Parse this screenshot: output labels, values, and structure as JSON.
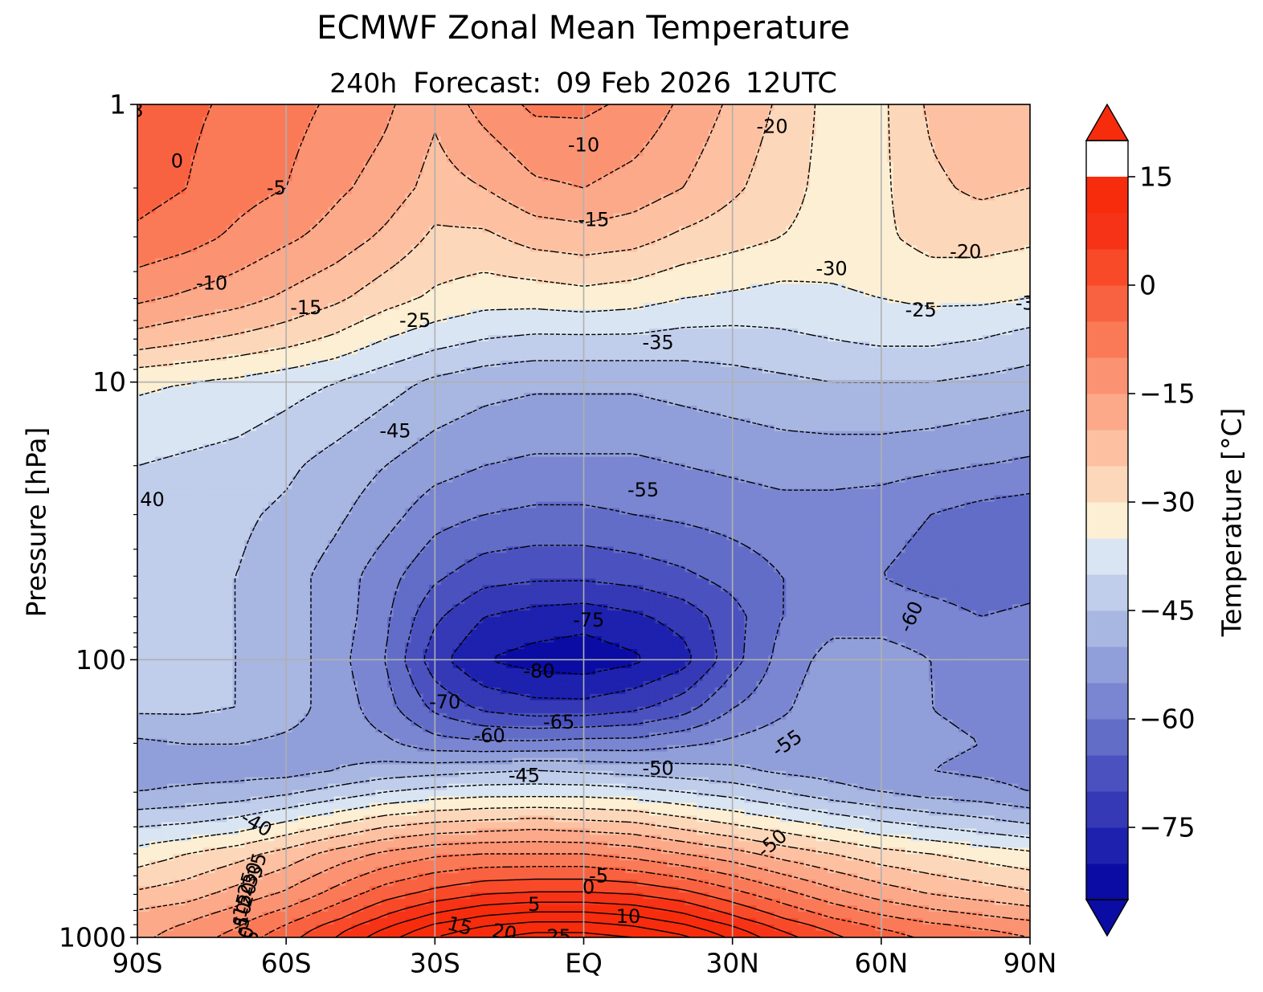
{
  "chart_data": {
    "type": "filled-contour",
    "title": "ECMWF Zonal Mean Temperature",
    "subtitle": {
      "lead_time": "240h",
      "label": "Forecast:",
      "valid_date": "09 Feb 2026",
      "valid_time": "12UTC"
    },
    "xlabel": "",
    "ylabel": "Pressure [hPa]",
    "x_axis": {
      "range": [
        -90,
        90
      ],
      "ticks": [
        -90,
        -60,
        -30,
        0,
        30,
        60,
        90
      ],
      "tick_labels": [
        "90S",
        "60S",
        "30S",
        "EQ",
        "30N",
        "60N",
        "90N"
      ]
    },
    "y_axis": {
      "scale": "log",
      "inverted": true,
      "range": [
        1000,
        1
      ],
      "ticks": [
        1,
        10,
        100,
        1000
      ],
      "tick_labels": [
        "1",
        "10",
        "100",
        "1000"
      ]
    },
    "grid": true,
    "colorbar": {
      "label": "Temperature [°C]",
      "extend": "both",
      "levels_min": -85,
      "levels_step": 5,
      "colors": [
        "#0a0ca3",
        "#1d21ae",
        "#3539b6",
        "#4b52bf",
        "#626dc8",
        "#7a86d1",
        "#909ed9",
        "#a8b6e2",
        "#c0cdeb",
        "#d9e5f3",
        "#fcefd3",
        "#fdd7ba",
        "#fdc1a2",
        "#fca98a",
        "#fb9271",
        "#fa7a58",
        "#f96240",
        "#f84a29",
        "#f73317",
        "#f62c0c"
      ],
      "tick_values": [
        -75,
        -60,
        -45,
        -30,
        -15,
        0,
        15
      ],
      "tick_labels": [
        "−75",
        "−60",
        "−45",
        "−30",
        "−15",
        "0",
        "15"
      ],
      "range": [
        -85,
        20
      ]
    },
    "contour_levels": [
      -80,
      -75,
      -70,
      -65,
      -60,
      -55,
      -50,
      -45,
      -40,
      -35,
      -30,
      -25,
      -20,
      -15,
      -10,
      -5,
      0,
      5,
      10,
      15,
      20,
      25
    ],
    "latitudes": [
      -90,
      -80,
      -70,
      -60,
      -50,
      -40,
      -30,
      -20,
      -10,
      0,
      10,
      20,
      30,
      40,
      50,
      60,
      70,
      80,
      90
    ],
    "pressure_levels": [
      1,
      2,
      3,
      5,
      7,
      10,
      20,
      30,
      50,
      70,
      100,
      150,
      200,
      250,
      300,
      400,
      500,
      700,
      850,
      925,
      1000
    ],
    "temperature_grid": [
      [
        -2,
        -4,
        -6,
        -8,
        -11,
        -14,
        -19,
        -13,
        -9,
        -9,
        -11,
        -16,
        -21,
        -26,
        -32,
        -31,
        -24,
        -21,
        -22
      ],
      [
        -3,
        -5,
        -8,
        -10,
        -14,
        -17,
        -22,
        -20,
        -16,
        -15,
        -17,
        -20,
        -24,
        -28,
        -32,
        -31,
        -26,
        -24,
        -25
      ],
      [
        -6,
        -8,
        -11,
        -14,
        -17,
        -21,
        -26,
        -26,
        -23,
        -22,
        -23,
        -26,
        -28,
        -30,
        -32,
        -31,
        -28,
        -28,
        -29
      ],
      [
        -14,
        -16,
        -18,
        -21,
        -24,
        -28,
        -31,
        -33,
        -33,
        -32,
        -33,
        -35,
        -36,
        -37,
        -36,
        -35,
        -34,
        -34,
        -35
      ],
      [
        -22,
        -24,
        -26,
        -28,
        -31,
        -35,
        -38,
        -40,
        -41,
        -41,
        -41,
        -42,
        -42,
        -41,
        -40,
        -39,
        -39,
        -40,
        -42
      ],
      [
        -34,
        -35,
        -36,
        -38,
        -40,
        -43,
        -46,
        -48,
        -49,
        -49,
        -49,
        -48,
        -47,
        -46,
        -45,
        -45,
        -45,
        -46,
        -47
      ],
      [
        -40,
        -41,
        -42,
        -44,
        -47,
        -50,
        -53,
        -55,
        -56,
        -56,
        -56,
        -55,
        -54,
        -53,
        -53,
        -53,
        -54,
        -55,
        -56
      ],
      [
        -43,
        -43,
        -44,
        -46,
        -49,
        -53,
        -58,
        -60,
        -61,
        -61,
        -60,
        -59,
        -58,
        -57,
        -57,
        -58,
        -60,
        -62,
        -63
      ],
      [
        -44,
        -44,
        -45,
        -48,
        -52,
        -58,
        -64,
        -68,
        -69,
        -69,
        -68,
        -66,
        -63,
        -60,
        -59,
        -60,
        -62,
        -63,
        -62
      ],
      [
        -44,
        -44,
        -45,
        -48,
        -52,
        -59,
        -69,
        -75,
        -77,
        -78,
        -76,
        -73,
        -67,
        -60,
        -57,
        -57,
        -58,
        -60,
        -59
      ],
      [
        -44,
        -44,
        -45,
        -47,
        -53,
        -60,
        -73,
        -80,
        -82,
        -83,
        -81,
        -77,
        -67,
        -58,
        -53,
        -53,
        -55,
        -57,
        -57
      ],
      [
        -44,
        -44,
        -45,
        -48,
        -52,
        -58,
        -66,
        -71,
        -73,
        -73,
        -71,
        -67,
        -60,
        -56,
        -51,
        -51,
        -55,
        -56,
        -57
      ],
      [
        -51,
        -50,
        -50,
        -51,
        -52,
        -54,
        -58,
        -59,
        -59,
        -58,
        -58,
        -56,
        -54,
        -52,
        -52,
        -53,
        -54,
        -55,
        -56
      ],
      [
        -52,
        -52,
        -52,
        -52,
        -50,
        -48,
        -47,
        -46,
        -45,
        -46,
        -47,
        -48,
        -49,
        -51,
        -52,
        -54,
        -55,
        -56,
        -57
      ],
      [
        -50,
        -49,
        -48,
        -46,
        -43,
        -40,
        -38,
        -37,
        -37,
        -37,
        -38,
        -40,
        -42,
        -45,
        -48,
        -50,
        -52,
        -53,
        -55
      ],
      [
        -40,
        -39,
        -37,
        -33,
        -29,
        -25,
        -23,
        -22,
        -21,
        -22,
        -23,
        -26,
        -29,
        -32,
        -35,
        -38,
        -40,
        -42,
        -44
      ],
      [
        -33,
        -30,
        -27,
        -23,
        -18,
        -14,
        -11,
        -10,
        -10,
        -10,
        -12,
        -15,
        -18,
        -22,
        -25,
        -28,
        -30,
        -32,
        -34
      ],
      [
        -24,
        -22,
        -18,
        -14,
        -8,
        -2,
        2,
        5,
        6,
        6,
        5,
        2,
        -3,
        -8,
        -13,
        -17,
        -20,
        -22,
        -24
      ],
      [
        -18,
        -16,
        -12,
        -7,
        -1,
        6,
        12,
        16,
        18,
        18,
        16,
        12,
        6,
        0,
        -5,
        -9,
        -12,
        -14,
        -16
      ],
      [
        -17,
        -14,
        -10,
        -4,
        3,
        10,
        17,
        21,
        23,
        23,
        21,
        17,
        11,
        4,
        -1,
        -5,
        -8,
        -10,
        -12
      ],
      [
        -16,
        -13,
        -8,
        -2,
        5,
        13,
        20,
        24,
        27,
        27,
        25,
        21,
        14,
        7,
        1,
        -3,
        -6,
        -8,
        -10
      ]
    ],
    "contour_labels": [
      "0",
      "-5",
      "-10",
      "-15",
      "-25",
      "-10",
      "-15",
      "-20",
      "-30",
      "-20",
      "-25",
      "-35",
      "-45",
      "40",
      "-55",
      "-60",
      "-75",
      "-80",
      "-70",
      "-65",
      "-60",
      "-45",
      "-50",
      "-55",
      "-40",
      "-50",
      "-5",
      "0",
      "5",
      "10",
      "15",
      "20",
      "25",
      "-35",
      "-30",
      "-25",
      "-20",
      "-15",
      "-10",
      "-5",
      "0",
      "5",
      "3",
      "-3"
    ],
    "legend": "none"
  }
}
